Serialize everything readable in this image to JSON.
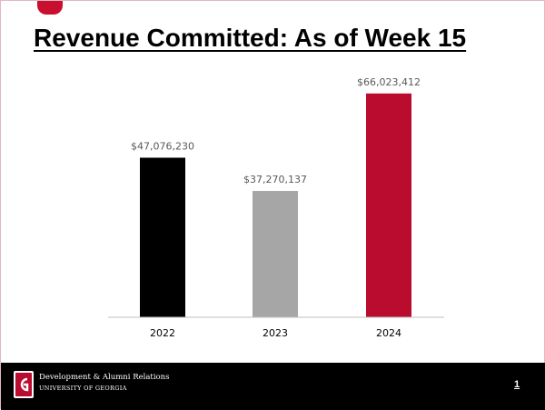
{
  "slide": {
    "title": "Revenue Committed: As of Week 15",
    "page_number": "1"
  },
  "footer": {
    "org_line1": "Development & Alumni Relations",
    "org_line2": "UNIVERSITY OF GEORGIA",
    "logo_icon": "georgia-g-logo-icon"
  },
  "chart_data": {
    "type": "bar",
    "categories": [
      "2022",
      "2023",
      "2024"
    ],
    "values": [
      47076230,
      37270137,
      66023412
    ],
    "data_labels": [
      "$47,076,230",
      "$37,270,137",
      "$66,023,412"
    ],
    "colors": [
      "#000000",
      "#a6a6a6",
      "#ba0c2f"
    ],
    "ylim": [
      0,
      70000000
    ],
    "grid": false,
    "legend": "none",
    "xlabel": "",
    "ylabel": ""
  }
}
